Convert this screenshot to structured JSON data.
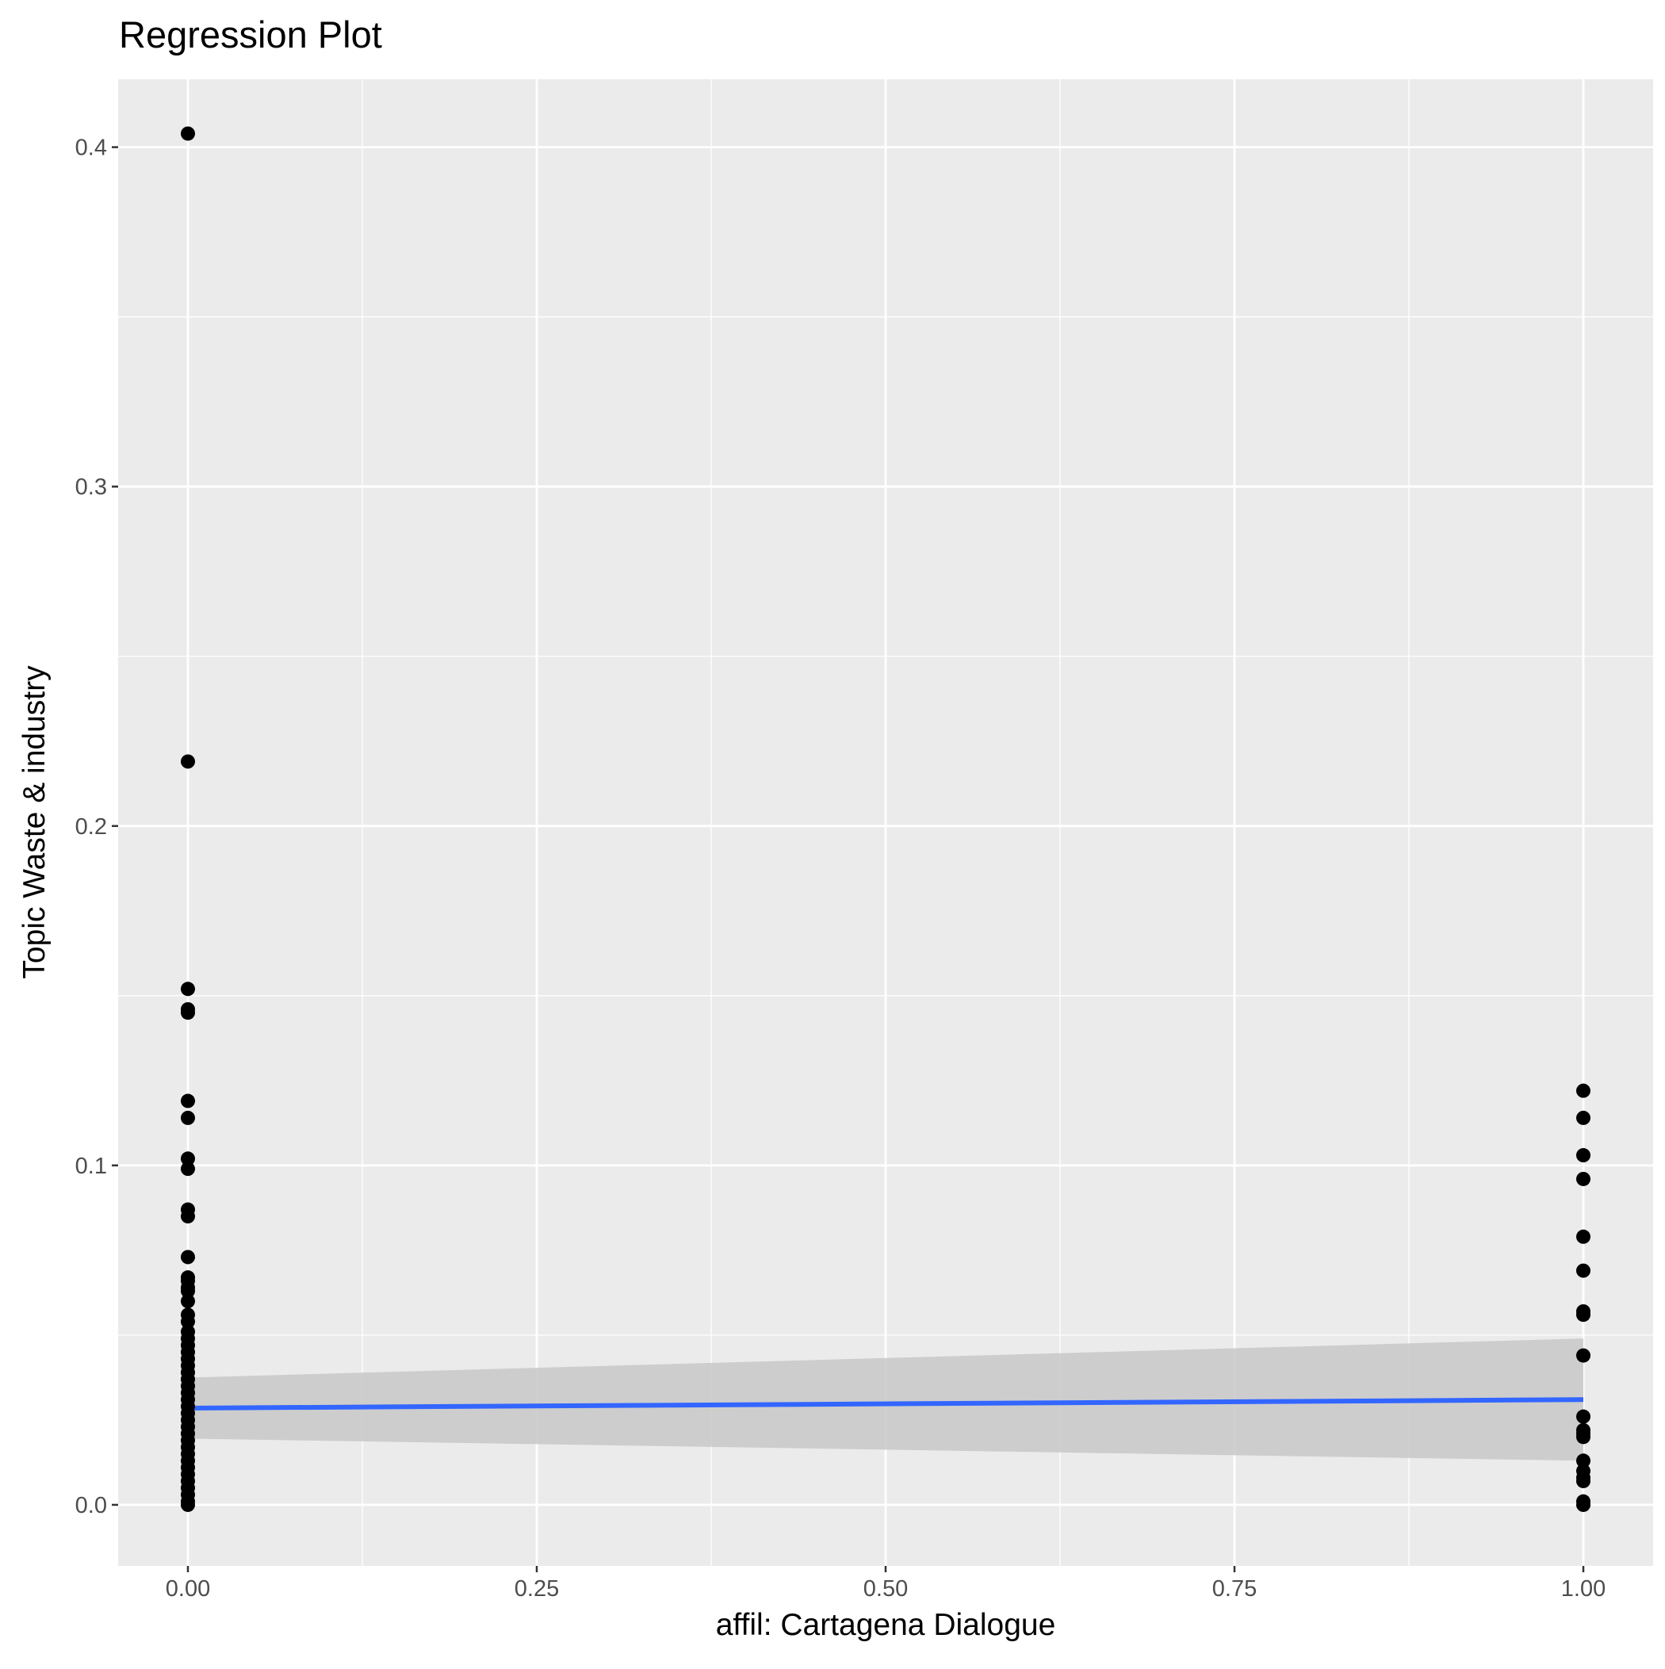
{
  "chart_data": {
    "type": "scatter",
    "title": "Regression Plot",
    "xlabel": "affil: Cartagena Dialogue",
    "ylabel": "Topic Waste & industry",
    "xlim": [
      -0.05,
      1.05
    ],
    "ylim": [
      -0.018,
      0.42
    ],
    "x_ticks": [
      0.0,
      0.25,
      0.5,
      0.75,
      1.0
    ],
    "x_tick_labels": [
      "0.00",
      "0.25",
      "0.50",
      "0.75",
      "1.00"
    ],
    "y_ticks": [
      0.0,
      0.1,
      0.2,
      0.3,
      0.4
    ],
    "y_tick_labels": [
      "0.0",
      "0.1",
      "0.2",
      "0.3",
      "0.4"
    ],
    "grid": true,
    "legend": "none",
    "series": [
      {
        "type": "points",
        "color": "#000000",
        "points": [
          [
            0,
            0.404
          ],
          [
            0,
            0.219
          ],
          [
            0,
            0.152
          ],
          [
            0,
            0.146
          ],
          [
            0,
            0.145
          ],
          [
            0,
            0.119
          ],
          [
            0,
            0.114
          ],
          [
            0,
            0.102
          ],
          [
            0,
            0.099
          ],
          [
            0,
            0.087
          ],
          [
            0,
            0.085
          ],
          [
            0,
            0.073
          ],
          [
            0,
            0.067
          ],
          [
            0,
            0.066
          ],
          [
            0,
            0.064
          ],
          [
            0,
            0.063
          ],
          [
            0,
            0.06
          ],
          [
            0,
            0.056
          ],
          [
            0,
            0.054
          ],
          [
            0,
            0.051
          ],
          [
            0,
            0.049
          ],
          [
            0,
            0.047
          ],
          [
            0,
            0.045
          ],
          [
            0,
            0.043
          ],
          [
            0,
            0.041
          ],
          [
            0,
            0.039
          ],
          [
            0,
            0.037
          ],
          [
            0,
            0.035
          ],
          [
            0,
            0.033
          ],
          [
            0,
            0.031
          ],
          [
            0,
            0.029
          ],
          [
            0,
            0.027
          ],
          [
            0,
            0.025
          ],
          [
            0,
            0.023
          ],
          [
            0,
            0.021
          ],
          [
            0,
            0.019
          ],
          [
            0,
            0.017
          ],
          [
            0,
            0.015
          ],
          [
            0,
            0.013
          ],
          [
            0,
            0.011
          ],
          [
            0,
            0.009
          ],
          [
            0,
            0.007
          ],
          [
            0,
            0.005
          ],
          [
            0,
            0.003
          ],
          [
            0,
            0.001
          ],
          [
            0,
            0.0
          ],
          [
            1,
            0.122
          ],
          [
            1,
            0.114
          ],
          [
            1,
            0.103
          ],
          [
            1,
            0.096
          ],
          [
            1,
            0.079
          ],
          [
            1,
            0.069
          ],
          [
            1,
            0.057
          ],
          [
            1,
            0.056
          ],
          [
            1,
            0.044
          ],
          [
            1,
            0.026
          ],
          [
            1,
            0.022
          ],
          [
            1,
            0.021
          ],
          [
            1,
            0.02
          ],
          [
            1,
            0.013
          ],
          [
            1,
            0.01
          ],
          [
            1,
            0.008
          ],
          [
            1,
            0.007
          ],
          [
            1,
            0.001
          ],
          [
            1,
            0.0
          ]
        ]
      },
      {
        "type": "regression-line",
        "color": "#3366ff",
        "x": [
          0,
          1
        ],
        "y": [
          0.0285,
          0.031
        ],
        "ci_lower": [
          0.0195,
          0.013
        ],
        "ci_upper": [
          0.0375,
          0.049
        ],
        "ci_color": "#c8c8c8"
      }
    ]
  }
}
